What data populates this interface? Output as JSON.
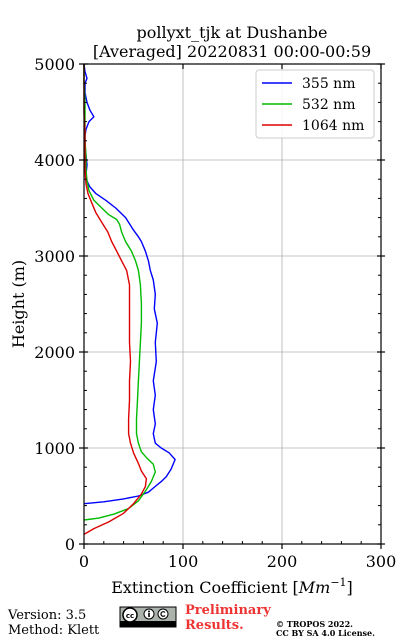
{
  "chart_data": {
    "type": "line",
    "title_line1": "pollyxt_tjk at Dushanbe",
    "title_line2": "[Averaged] 20220831 00:00-00:59",
    "xlabel_prefix": "Extinction Coefficient [",
    "xlabel_unit": "Mm",
    "xlabel_exp": "−1",
    "xlabel_suffix": "]",
    "ylabel": "Height (m)",
    "xlim": [
      0,
      300
    ],
    "ylim": [
      0,
      5000
    ],
    "xticks": [
      0,
      100,
      200,
      300
    ],
    "yticks": [
      0,
      1000,
      2000,
      3000,
      4000,
      5000
    ],
    "grid": true,
    "legend_position": "top-right",
    "series": [
      {
        "name": "355 nm",
        "color": "#0000ff",
        "points": [
          [
            0,
            420
          ],
          [
            20,
            440
          ],
          [
            40,
            470
          ],
          [
            55,
            500
          ],
          [
            65,
            540
          ],
          [
            72,
            600
          ],
          [
            78,
            650
          ],
          [
            83,
            700
          ],
          [
            88,
            780
          ],
          [
            92,
            880
          ],
          [
            86,
            950
          ],
          [
            78,
            1000
          ],
          [
            72,
            1050
          ],
          [
            70,
            1150
          ],
          [
            72,
            1250
          ],
          [
            70,
            1400
          ],
          [
            72,
            1550
          ],
          [
            70,
            1700
          ],
          [
            73,
            1900
          ],
          [
            72,
            2100
          ],
          [
            74,
            2300
          ],
          [
            71,
            2450
          ],
          [
            72,
            2600
          ],
          [
            70,
            2750
          ],
          [
            67,
            2850
          ],
          [
            65,
            2950
          ],
          [
            62,
            3050
          ],
          [
            58,
            3150
          ],
          [
            55,
            3200
          ],
          [
            50,
            3270
          ],
          [
            45,
            3350
          ],
          [
            42,
            3400
          ],
          [
            32,
            3500
          ],
          [
            22,
            3580
          ],
          [
            12,
            3650
          ],
          [
            6,
            3720
          ],
          [
            3,
            3780
          ],
          [
            2,
            3850
          ],
          [
            3,
            3950
          ],
          [
            2,
            4050
          ],
          [
            1,
            4150
          ],
          [
            1,
            4250
          ],
          [
            2,
            4320
          ],
          [
            5,
            4400
          ],
          [
            10,
            4450
          ],
          [
            6,
            4520
          ],
          [
            3,
            4600
          ],
          [
            1,
            4700
          ],
          [
            1,
            4800
          ],
          [
            3,
            4850
          ],
          [
            1,
            4920
          ],
          [
            0,
            5000
          ]
        ]
      },
      {
        "name": "532 nm",
        "color": "#00bb00",
        "points": [
          [
            0,
            250
          ],
          [
            15,
            270
          ],
          [
            30,
            310
          ],
          [
            45,
            370
          ],
          [
            55,
            450
          ],
          [
            62,
            550
          ],
          [
            68,
            650
          ],
          [
            72,
            750
          ],
          [
            70,
            830
          ],
          [
            63,
            900
          ],
          [
            58,
            960
          ],
          [
            55,
            1050
          ],
          [
            53,
            1150
          ],
          [
            53,
            1300
          ],
          [
            54,
            1500
          ],
          [
            55,
            1700
          ],
          [
            56,
            1900
          ],
          [
            57,
            2100
          ],
          [
            58,
            2300
          ],
          [
            58,
            2500
          ],
          [
            57,
            2700
          ],
          [
            55,
            2850
          ],
          [
            52,
            2950
          ],
          [
            48,
            3050
          ],
          [
            42,
            3150
          ],
          [
            38,
            3250
          ],
          [
            36,
            3330
          ],
          [
            33,
            3380
          ],
          [
            25,
            3430
          ],
          [
            18,
            3500
          ],
          [
            10,
            3580
          ],
          [
            5,
            3680
          ],
          [
            3,
            3780
          ],
          [
            2,
            3900
          ],
          [
            2,
            4050
          ],
          [
            1,
            4200
          ],
          [
            1,
            4400
          ],
          [
            1,
            4600
          ],
          [
            0,
            4800
          ],
          [
            0,
            5000
          ]
        ]
      },
      {
        "name": "1064 nm",
        "color": "#dd0000",
        "points": [
          [
            0,
            100
          ],
          [
            10,
            160
          ],
          [
            25,
            230
          ],
          [
            40,
            320
          ],
          [
            50,
            420
          ],
          [
            58,
            520
          ],
          [
            62,
            600
          ],
          [
            63,
            680
          ],
          [
            58,
            760
          ],
          [
            55,
            840
          ],
          [
            50,
            950
          ],
          [
            47,
            1050
          ],
          [
            45,
            1150
          ],
          [
            45,
            1300
          ],
          [
            46,
            1500
          ],
          [
            46,
            1700
          ],
          [
            47,
            1900
          ],
          [
            46,
            2100
          ],
          [
            46,
            2300
          ],
          [
            46,
            2500
          ],
          [
            46,
            2700
          ],
          [
            43,
            2850
          ],
          [
            38,
            2950
          ],
          [
            33,
            3050
          ],
          [
            28,
            3150
          ],
          [
            24,
            3250
          ],
          [
            18,
            3350
          ],
          [
            12,
            3450
          ],
          [
            8,
            3550
          ],
          [
            4,
            3650
          ],
          [
            2,
            3750
          ],
          [
            1,
            3900
          ],
          [
            1,
            4100
          ],
          [
            1,
            4300
          ],
          [
            0,
            4500
          ],
          [
            0,
            4700
          ],
          [
            0,
            5000
          ]
        ]
      }
    ]
  },
  "footer": {
    "version": "Version: 3.5",
    "method": "Method: Klett",
    "preliminary_line1": "Preliminary",
    "preliminary_line2": "Results.",
    "copyright_line1": "© TROPOS 2022.",
    "copyright_line2": "CC BY SA 4.0 License.",
    "license_badge_icon": "cc-by-sa-icon"
  }
}
